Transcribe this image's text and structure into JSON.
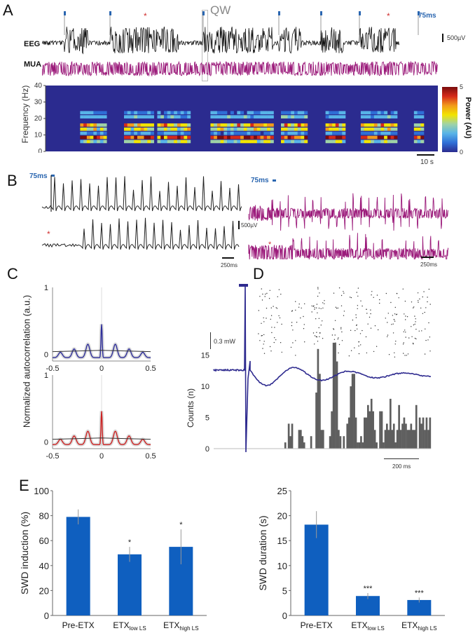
{
  "panels": {
    "A": {
      "letter": "A",
      "qw_label": "QW",
      "eeg_label": "EEG",
      "mua_label": "MUA",
      "stim_label": "75ms",
      "voltage_scale": "500µV",
      "time_scale": "10 s",
      "stim_markers": [
        "stim",
        "stim",
        "star",
        "stim",
        "stim",
        "stim",
        "stim",
        "star",
        "stim"
      ],
      "spectrogram": {
        "ylabel": "Frequency (Hz)",
        "yticks": [
          "0",
          "10",
          "20",
          "30",
          "40"
        ],
        "colorbar_label": "Power (AU)",
        "colorbar_ticks": [
          "0",
          "5"
        ],
        "colorbar_colors": [
          "#2b2b8f",
          "#2f6fd6",
          "#58b4e8",
          "#9fd3a6",
          "#f2e400",
          "#f29a1a",
          "#d62a1a",
          "#7a0d0d"
        ]
      }
    },
    "B": {
      "letter": "B",
      "stim_label": "75ms",
      "voltage_scale": "500µV",
      "time_scale_left": "250ms",
      "time_scale_right": "250ms"
    },
    "C": {
      "letter": "C",
      "ylabel": "Normalized autocorrelation (a.u.)"
    },
    "D": {
      "letter": "D",
      "power_scale": "0.3 mW",
      "ylabel": "Counts (n)",
      "time_scale": "200 ms"
    },
    "E": {
      "letter": "E"
    }
  },
  "colors": {
    "eeg": "#111111",
    "mua": "#9b1a7a",
    "stim_blue": "#2a66b0",
    "star_red": "#d03030",
    "acorr_blue": "#2e2e9a",
    "acorr_red": "#cc2222",
    "lfp_blue": "#2e2a8f",
    "hist_gray": "#5e5e5e",
    "bar_blue": "#0f5fbf"
  },
  "chart_data": [
    {
      "type": "line",
      "id": "C-top",
      "title": "",
      "xlabel": "",
      "ylabel": "Normalized autocorrelation (a.u.)",
      "xlim": [
        -0.5,
        0.5
      ],
      "ylim": [
        -0.1,
        1
      ],
      "xticks": [
        "-0.5",
        "0",
        "0.5"
      ],
      "yticks": [
        "0",
        "1"
      ],
      "series": [
        {
          "name": "SWD autocorrelation",
          "color": "#2e2e9a",
          "x": [
            -0.5,
            -0.42,
            -0.36,
            -0.28,
            -0.21,
            -0.14,
            -0.07,
            0,
            0.07,
            0.14,
            0.21,
            0.28,
            0.36,
            0.42,
            0.5
          ],
          "y": [
            -0.01,
            0.04,
            -0.04,
            0.08,
            -0.05,
            0.15,
            -0.05,
            0.45,
            -0.05,
            0.15,
            -0.05,
            0.08,
            -0.04,
            0.04,
            -0.01
          ]
        },
        {
          "name": "Baseline",
          "color": "#333333",
          "x": [
            -0.5,
            0,
            0.5
          ],
          "y": [
            0.04,
            0.06,
            0.04
          ]
        }
      ]
    },
    {
      "type": "line",
      "id": "C-bottom",
      "xlim": [
        -0.5,
        0.5
      ],
      "ylim": [
        -0.1,
        1
      ],
      "xticks": [
        "-0.5",
        "0",
        "0.5"
      ],
      "yticks": [
        "0",
        "1"
      ],
      "series": [
        {
          "name": "SWD autocorrelation (ETX)",
          "color": "#cc2222",
          "x": [
            -0.5,
            -0.42,
            -0.36,
            -0.28,
            -0.21,
            -0.14,
            -0.07,
            0,
            0.07,
            0.14,
            0.21,
            0.28,
            0.36,
            0.42,
            0.5
          ],
          "y": [
            0.0,
            0.03,
            -0.03,
            0.08,
            -0.05,
            0.16,
            -0.05,
            0.45,
            -0.05,
            0.16,
            -0.05,
            0.08,
            -0.03,
            0.03,
            0.0
          ]
        },
        {
          "name": "Baseline",
          "color": "#333333",
          "x": [
            -0.5,
            0,
            0.5
          ],
          "y": [
            0.04,
            0.06,
            0.04
          ]
        }
      ]
    },
    {
      "type": "bar",
      "id": "D-histogram",
      "ylabel": "Counts (n)",
      "yticks": [
        "0",
        "5",
        "10",
        "15"
      ],
      "ylim": [
        0,
        18
      ],
      "values": [
        0,
        0,
        0,
        0,
        0,
        0,
        0,
        0,
        0,
        0,
        0,
        0,
        0,
        0,
        0,
        0,
        0,
        0,
        0,
        0,
        0,
        0,
        0,
        0,
        0,
        0,
        0,
        0,
        0,
        0,
        0,
        0,
        0,
        0,
        0,
        0,
        0,
        0,
        0,
        0,
        0,
        1,
        0,
        4,
        2,
        4,
        0,
        0,
        0,
        3,
        3,
        2,
        1,
        0,
        0,
        0,
        2,
        0,
        0,
        9,
        16,
        12,
        3,
        3,
        0,
        0,
        0,
        2,
        6,
        17,
        17,
        14,
        3,
        2,
        0,
        2,
        0,
        4,
        5,
        10,
        12,
        12,
        5,
        1,
        1,
        2,
        1,
        5,
        5,
        7,
        6,
        8,
        6,
        3,
        1,
        0,
        6,
        6,
        1,
        3,
        4,
        3,
        8,
        3,
        4,
        1,
        3,
        7,
        3,
        4,
        5,
        4,
        3,
        3,
        4,
        3,
        3,
        7,
        0,
        5,
        4,
        5,
        3,
        5,
        3,
        5
      ]
    },
    {
      "type": "bar",
      "id": "E-induction",
      "ylabel": "SWD induction (%)",
      "ylim": [
        0,
        100
      ],
      "yticks": [
        "0",
        "20",
        "40",
        "60",
        "80",
        "100"
      ],
      "categories": [
        "Pre-ETX",
        "ETX_low LS",
        "ETX_high LS"
      ],
      "category_main": [
        "Pre-ETX",
        "ETX",
        "ETX"
      ],
      "category_sub": [
        "",
        "low LS",
        "high LS"
      ],
      "values": [
        79,
        49,
        55
      ],
      "errors": [
        6,
        6,
        14
      ],
      "significance": [
        "",
        "*",
        "*"
      ]
    },
    {
      "type": "bar",
      "id": "E-duration",
      "ylabel": "SWD duration (s)",
      "ylim": [
        0,
        25
      ],
      "yticks": [
        "0",
        "5",
        "10",
        "15",
        "20",
        "25"
      ],
      "categories": [
        "Pre-ETX",
        "ETX_low LS",
        "ETX_high LS"
      ],
      "category_main": [
        "Pre-ETX",
        "ETX",
        "ETX"
      ],
      "category_sub": [
        "",
        "low LS",
        "high LS"
      ],
      "values": [
        18.2,
        3.9,
        3.1
      ],
      "errors": [
        2.7,
        0.6,
        0.5
      ],
      "significance": [
        "",
        "***",
        "***"
      ]
    }
  ]
}
